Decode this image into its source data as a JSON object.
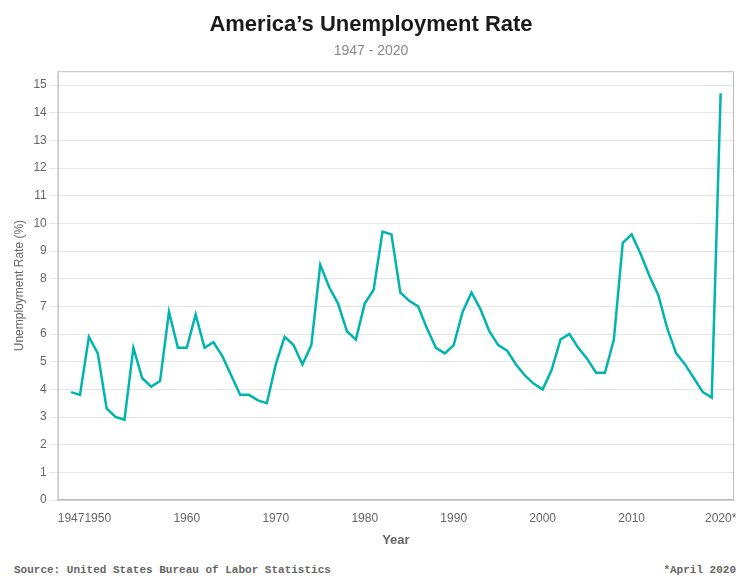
{
  "chart_data": {
    "type": "line",
    "title": "America’s Unemployment Rate",
    "subtitle": "1947 - 2020",
    "xlabel": "Year",
    "ylabel": "Unemployment Rate (%)",
    "source": "Source: United States Bureau of Labor Statistics",
    "note": "*April 2020",
    "color": "#00B5AD",
    "x": [
      1947,
      1948,
      1949,
      1950,
      1951,
      1952,
      1953,
      1954,
      1955,
      1956,
      1957,
      1958,
      1959,
      1960,
      1961,
      1962,
      1963,
      1964,
      1965,
      1966,
      1967,
      1968,
      1969,
      1970,
      1971,
      1972,
      1973,
      1974,
      1975,
      1976,
      1977,
      1978,
      1979,
      1980,
      1981,
      1982,
      1983,
      1984,
      1985,
      1986,
      1987,
      1988,
      1989,
      1990,
      1991,
      1992,
      1993,
      1994,
      1995,
      1996,
      1997,
      1998,
      1999,
      2000,
      2001,
      2002,
      2003,
      2004,
      2005,
      2006,
      2007,
      2008,
      2009,
      2010,
      2011,
      2012,
      2013,
      2014,
      2015,
      2016,
      2017,
      2018,
      2019,
      2020
    ],
    "values": [
      3.9,
      3.8,
      5.9,
      5.3,
      3.3,
      3.0,
      2.9,
      5.5,
      4.4,
      4.1,
      4.3,
      6.8,
      5.5,
      5.5,
      6.7,
      5.5,
      5.7,
      5.2,
      4.5,
      3.8,
      3.8,
      3.6,
      3.5,
      4.9,
      5.9,
      5.6,
      4.9,
      5.6,
      8.5,
      7.7,
      7.1,
      6.1,
      5.8,
      7.1,
      7.6,
      9.7,
      9.6,
      7.5,
      7.2,
      7.0,
      6.2,
      5.5,
      5.3,
      5.6,
      6.8,
      7.5,
      6.9,
      6.1,
      5.6,
      5.4,
      4.9,
      4.5,
      4.2,
      4.0,
      4.7,
      5.8,
      6.0,
      5.5,
      5.1,
      4.6,
      4.6,
      5.8,
      9.3,
      9.6,
      8.9,
      8.1,
      7.4,
      6.2,
      5.3,
      4.9,
      4.4,
      3.9,
      3.7,
      14.7
    ],
    "xlim": [
      1945.5,
      2021.5
    ],
    "xticks": [
      1947,
      1950,
      1960,
      1970,
      1980,
      1990,
      2000,
      2010,
      {
        "value": 2020,
        "label": "2020*"
      }
    ],
    "ylim": [
      0,
      15.5
    ],
    "yticks": [
      0,
      1,
      2,
      3,
      4,
      5,
      6,
      7,
      8,
      9,
      10,
      11,
      12,
      13,
      14,
      15
    ],
    "grid": "y"
  }
}
